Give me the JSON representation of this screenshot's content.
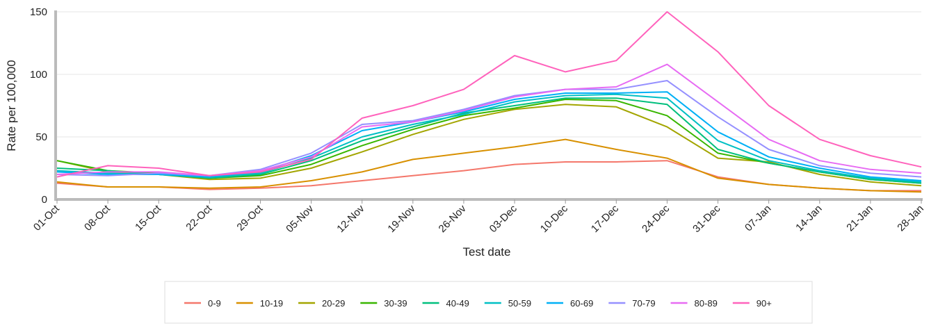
{
  "chart_data": {
    "type": "line",
    "x_label": "Test date",
    "y_label": "Rate per 100,000",
    "categories": [
      "01-Oct",
      "08-Oct",
      "15-Oct",
      "22-Oct",
      "29-Oct",
      "05-Nov",
      "12-Nov",
      "19-Nov",
      "26-Nov",
      "03-Dec",
      "10-Dec",
      "17-Dec",
      "24-Dec",
      "31-Dec",
      "07-Jan",
      "14-Jan",
      "21-Jan",
      "28-Jan"
    ],
    "ylim": [
      0,
      150
    ],
    "yticks": [
      0,
      50,
      100,
      150
    ],
    "grid": true,
    "series": [
      {
        "name": "0-9",
        "color": "#f4776b",
        "values": [
          13,
          10,
          10,
          8,
          9,
          11,
          15,
          19,
          23,
          28,
          30,
          30,
          31,
          18,
          12,
          9,
          7,
          7
        ]
      },
      {
        "name": "10-19",
        "color": "#d89000",
        "values": [
          14,
          10,
          10,
          9,
          10,
          15,
          22,
          32,
          37,
          42,
          48,
          40,
          33,
          17,
          12,
          9,
          7,
          6
        ]
      },
      {
        "name": "20-29",
        "color": "#a3a500",
        "values": [
          31,
          22,
          20,
          16,
          17,
          25,
          38,
          52,
          64,
          72,
          76,
          74,
          58,
          33,
          30,
          20,
          14,
          11
        ]
      },
      {
        "name": "30-39",
        "color": "#39b600",
        "values": [
          31,
          23,
          21,
          17,
          19,
          28,
          43,
          56,
          67,
          73,
          80,
          79,
          67,
          37,
          29,
          22,
          16,
          13
        ]
      },
      {
        "name": "40-49",
        "color": "#00bf7d",
        "values": [
          25,
          23,
          20,
          17,
          20,
          31,
          47,
          58,
          69,
          75,
          81,
          81,
          76,
          40,
          29,
          22,
          16,
          13
        ]
      },
      {
        "name": "50-59",
        "color": "#00bfc4",
        "values": [
          23,
          21,
          20,
          18,
          21,
          33,
          50,
          60,
          68,
          78,
          83,
          84,
          81,
          47,
          31,
          23,
          17,
          14
        ]
      },
      {
        "name": "60-69",
        "color": "#00b0f6",
        "values": [
          22,
          20,
          20,
          18,
          22,
          35,
          55,
          62,
          70,
          80,
          85,
          85,
          86,
          54,
          34,
          25,
          18,
          15
        ]
      },
      {
        "name": "70-79",
        "color": "#9590ff",
        "values": [
          20,
          19,
          21,
          19,
          24,
          37,
          60,
          63,
          72,
          83,
          88,
          88,
          95,
          66,
          40,
          27,
          21,
          18
        ]
      },
      {
        "name": "80-89",
        "color": "#e76bf3",
        "values": [
          20,
          22,
          22,
          19,
          23,
          34,
          58,
          62,
          71,
          82,
          88,
          90,
          108,
          78,
          48,
          31,
          24,
          21
        ]
      },
      {
        "name": "90+",
        "color": "#ff62bc",
        "values": [
          18,
          27,
          25,
          19,
          22,
          32,
          65,
          75,
          88,
          115,
          102,
          111,
          150,
          118,
          75,
          48,
          35,
          26
        ]
      }
    ]
  }
}
